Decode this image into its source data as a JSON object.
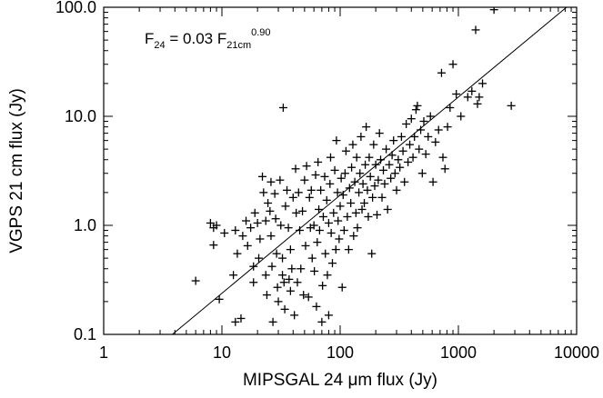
{
  "chart_data": {
    "type": "scatter",
    "title": "",
    "xlabel": "MIPSGAL 24 μm flux (Jy)",
    "ylabel": "VGPS 21 cm flux (Jy)",
    "xscale": "log",
    "yscale": "log",
    "xlim": [
      1,
      10000
    ],
    "ylim": [
      0.1,
      100
    ],
    "xticks": [
      1,
      10,
      100,
      1000,
      10000
    ],
    "xtick_labels": [
      "1",
      "10",
      "100",
      "1000",
      "10000"
    ],
    "yticks": [
      0.1,
      1,
      10,
      100
    ],
    "ytick_labels": [
      "0.1",
      "1.0",
      "10.0",
      "100.0"
    ],
    "grid": false,
    "legend": "none",
    "annotation": {
      "parts": [
        "F",
        "24",
        " = 0.03 F",
        "21cm",
        "0.90"
      ]
    },
    "fit_line": {
      "coefficient": 0.03,
      "exponent": 0.9
    },
    "series": [
      {
        "marker": "+",
        "color": "#000000",
        "points": [
          [
            6.0,
            0.31
          ],
          [
            8.0,
            1.05
          ],
          [
            8.5,
            0.95
          ],
          [
            8.5,
            0.66
          ],
          [
            9.0,
            1.0
          ],
          [
            9.5,
            0.21
          ],
          [
            10.5,
            0.85
          ],
          [
            12.5,
            0.35
          ],
          [
            13.0,
            0.9
          ],
          [
            13.5,
            0.55
          ],
          [
            13.0,
            0.13
          ],
          [
            14.5,
            0.14
          ],
          [
            15.0,
            0.8
          ],
          [
            16.0,
            1.1
          ],
          [
            16.5,
            0.65
          ],
          [
            17.5,
            0.95
          ],
          [
            18.5,
            0.42
          ],
          [
            18.5,
            0.3
          ],
          [
            19.0,
            1.3
          ],
          [
            20.0,
            1.05
          ],
          [
            20.5,
            0.5
          ],
          [
            21.0,
            0.75
          ],
          [
            22.0,
            2.8
          ],
          [
            22.5,
            2.0
          ],
          [
            23.5,
            1.1
          ],
          [
            23.5,
            0.35
          ],
          [
            24.0,
            0.23
          ],
          [
            24.5,
            1.6
          ],
          [
            25.5,
            1.35
          ],
          [
            26.0,
            2.5
          ],
          [
            26.0,
            0.8
          ],
          [
            26.5,
            0.42
          ],
          [
            27.0,
            0.13
          ],
          [
            28.0,
            1.95
          ],
          [
            28.5,
            1.15
          ],
          [
            29.0,
            0.55
          ],
          [
            29.5,
            0.27
          ],
          [
            30.0,
            0.2
          ],
          [
            31.0,
            2.6
          ],
          [
            31.5,
            1.0
          ],
          [
            32.5,
            0.5
          ],
          [
            32.5,
            0.35
          ],
          [
            33.0,
            12.0
          ],
          [
            33.5,
            0.3
          ],
          [
            34.0,
            0.17
          ],
          [
            34.5,
            1.5
          ],
          [
            35.5,
            2.1
          ],
          [
            36.5,
            0.95
          ],
          [
            37.0,
            0.32
          ],
          [
            38.0,
            0.6
          ],
          [
            38.0,
            0.25
          ],
          [
            39.0,
            0.4
          ],
          [
            40.0,
            1.8
          ],
          [
            41.0,
            0.15
          ],
          [
            42.0,
            3.3
          ],
          [
            42.5,
            1.3
          ],
          [
            43.5,
            0.3
          ],
          [
            44.5,
            2.0
          ],
          [
            45.5,
            0.9
          ],
          [
            46.5,
            0.4
          ],
          [
            48.0,
            1.35
          ],
          [
            49.0,
            0.23
          ],
          [
            50.0,
            2.6
          ],
          [
            51.0,
            0.65
          ],
          [
            52.0,
            3.5
          ],
          [
            54.0,
            0.22
          ],
          [
            55.0,
            1.8
          ],
          [
            56.0,
            0.95
          ],
          [
            57.0,
            2.1
          ],
          [
            58.0,
            0.5
          ],
          [
            60.0,
            1.0
          ],
          [
            60.5,
            0.38
          ],
          [
            62.0,
            2.9
          ],
          [
            63.0,
            0.18
          ],
          [
            64.0,
            0.7
          ],
          [
            65.0,
            3.8
          ],
          [
            66.0,
            1.4
          ],
          [
            67.0,
            0.9
          ],
          [
            68.5,
            2.1
          ],
          [
            70.0,
            0.13
          ],
          [
            71.0,
            0.28
          ],
          [
            72.0,
            1.2
          ],
          [
            74.0,
            2.8
          ],
          [
            75.0,
            0.55
          ],
          [
            77.0,
            1.7
          ],
          [
            78.0,
            0.35
          ],
          [
            80.0,
            1.05
          ],
          [
            80.0,
            0.15
          ],
          [
            82.0,
            2.4
          ],
          [
            83.0,
            4.2
          ],
          [
            84.0,
            0.85
          ],
          [
            86.0,
            0.45
          ],
          [
            88.0,
            1.3
          ],
          [
            90.0,
            3.2
          ],
          [
            92.0,
            0.6
          ],
          [
            93.0,
            6.0
          ],
          [
            95.0,
            2.0
          ],
          [
            96.0,
            1.1
          ],
          [
            98.0,
            0.75
          ],
          [
            100.0,
            1.5
          ],
          [
            102.0,
            2.7
          ],
          [
            104.0,
            0.27
          ],
          [
            106.0,
            1.9
          ],
          [
            108.0,
            0.9
          ],
          [
            110.0,
            3.0
          ],
          [
            112.0,
            4.8
          ],
          [
            115.0,
            1.2
          ],
          [
            118.0,
            0.6
          ],
          [
            120.0,
            2.2
          ],
          [
            123.0,
            1.6
          ],
          [
            125.0,
            3.4
          ],
          [
            128.0,
            5.5
          ],
          [
            130.0,
            0.8
          ],
          [
            133.0,
            2.5
          ],
          [
            136.0,
            1.3
          ],
          [
            138.0,
            4.2
          ],
          [
            140.0,
            0.95
          ],
          [
            144.0,
            2.0
          ],
          [
            147.0,
            3.0
          ],
          [
            150.0,
            6.5
          ],
          [
            153.0,
            1.4
          ],
          [
            156.0,
            2.4
          ],
          [
            160.0,
            1.6
          ],
          [
            163.0,
            3.6
          ],
          [
            166.0,
            8.0
          ],
          [
            170.0,
            2.1
          ],
          [
            173.0,
            1.2
          ],
          [
            176.0,
            4.2
          ],
          [
            180.0,
            2.8
          ],
          [
            185.0,
            0.55
          ],
          [
            188.0,
            1.8
          ],
          [
            192.0,
            5.5
          ],
          [
            196.0,
            2.3
          ],
          [
            200.0,
            3.6
          ],
          [
            205.0,
            1.25
          ],
          [
            210.0,
            2.6
          ],
          [
            215.0,
            7.0
          ],
          [
            220.0,
            4.0
          ],
          [
            226.0,
            1.8
          ],
          [
            232.0,
            3.2
          ],
          [
            238.0,
            2.4
          ],
          [
            245.0,
            5.0
          ],
          [
            252.0,
            1.4
          ],
          [
            260.0,
            3.6
          ],
          [
            268.0,
            2.7
          ],
          [
            275.0,
            4.4
          ],
          [
            283.0,
            6.0
          ],
          [
            291.0,
            3.0
          ],
          [
            300.0,
            2.1
          ],
          [
            310.0,
            4.0
          ],
          [
            320.0,
            3.4
          ],
          [
            330.0,
            6.5
          ],
          [
            340.0,
            4.8
          ],
          [
            350.0,
            2.5
          ],
          [
            362.0,
            8.5
          ],
          [
            375.0,
            3.8
          ],
          [
            388.0,
            5.5
          ],
          [
            400.0,
            9.5
          ],
          [
            413.0,
            4.2
          ],
          [
            425.0,
            6.5
          ],
          [
            438.0,
            11.5
          ],
          [
            450.0,
            12.5
          ],
          [
            465.0,
            5.0
          ],
          [
            480.0,
            7.5
          ],
          [
            495.0,
            3.0
          ],
          [
            510.0,
            9.0
          ],
          [
            530.0,
            4.5
          ],
          [
            555.0,
            6.5
          ],
          [
            580.0,
            10.0
          ],
          [
            610.0,
            2.5
          ],
          [
            640.0,
            5.8
          ],
          [
            680.0,
            7.5
          ],
          [
            720.0,
            25.0
          ],
          [
            740.0,
            4.2
          ],
          [
            770.0,
            3.3
          ],
          [
            810.0,
            8.0
          ],
          [
            850.0,
            12.0
          ],
          [
            900.0,
            30.0
          ],
          [
            960.0,
            16.0
          ],
          [
            1050.0,
            10.0
          ],
          [
            1200.0,
            15.0
          ],
          [
            1300.0,
            17.0
          ],
          [
            1400.0,
            62.0
          ],
          [
            1450.0,
            13.0
          ],
          [
            1500.0,
            15.0
          ],
          [
            1600.0,
            20.0
          ],
          [
            2000.0,
            95.0
          ],
          [
            2800.0,
            12.5
          ]
        ]
      }
    ]
  }
}
